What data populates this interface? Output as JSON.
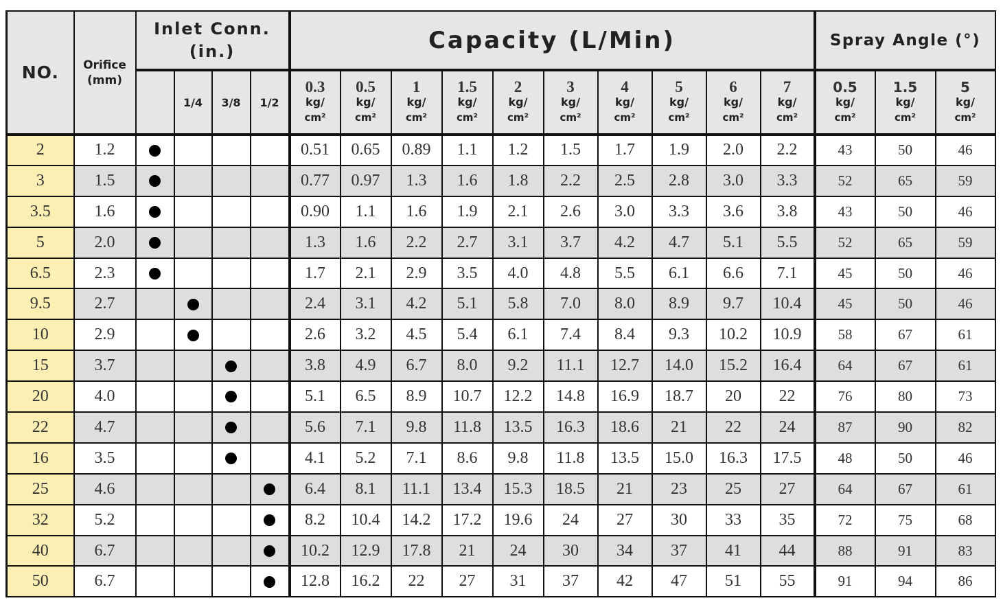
{
  "headers": {
    "no": "NO.",
    "orifice_line1": "Orifice",
    "orifice_line2": "(mm)",
    "inlet_line1": "Inlet Conn.",
    "inlet_line2": "(in.)",
    "capacity": "Capacity (L/Min)",
    "spray_angle": "Spray Angle (°)",
    "inlet_sizes": [
      "1/4",
      "3/8",
      "1/2"
    ],
    "unit_top": "kg/",
    "unit_bottom": "cm²",
    "capacity_pressures": [
      "0.3",
      "0.5",
      "1",
      "1.5",
      "2",
      "3",
      "4",
      "5",
      "6",
      "7"
    ],
    "spray_pressures": [
      "0.5",
      "1.5",
      "5"
    ]
  },
  "dot_symbol": "●",
  "rows": [
    {
      "no": "2",
      "orifice": "1.2",
      "inlet": 0,
      "capacity": [
        "0.51",
        "0.65",
        "0.89",
        "1.1",
        "1.2",
        "1.5",
        "1.7",
        "1.9",
        "2.0",
        "2.2"
      ],
      "spray": [
        "43",
        "50",
        "46"
      ]
    },
    {
      "no": "3",
      "orifice": "1.5",
      "inlet": 0,
      "capacity": [
        "0.77",
        "0.97",
        "1.3",
        "1.6",
        "1.8",
        "2.2",
        "2.5",
        "2.8",
        "3.0",
        "3.3"
      ],
      "spray": [
        "52",
        "65",
        "59"
      ]
    },
    {
      "no": "3.5",
      "orifice": "1.6",
      "inlet": 0,
      "capacity": [
        "0.90",
        "1.1",
        "1.6",
        "1.9",
        "2.1",
        "2.6",
        "3.0",
        "3.3",
        "3.6",
        "3.8"
      ],
      "spray": [
        "43",
        "50",
        "46"
      ]
    },
    {
      "no": "5",
      "orifice": "2.0",
      "inlet": 0,
      "capacity": [
        "1.3",
        "1.6",
        "2.2",
        "2.7",
        "3.1",
        "3.7",
        "4.2",
        "4.7",
        "5.1",
        "5.5"
      ],
      "spray": [
        "52",
        "65",
        "59"
      ]
    },
    {
      "no": "6.5",
      "orifice": "2.3",
      "inlet": 0,
      "capacity": [
        "1.7",
        "2.1",
        "2.9",
        "3.5",
        "4.0",
        "4.8",
        "5.5",
        "6.1",
        "6.6",
        "7.1"
      ],
      "spray": [
        "45",
        "50",
        "46"
      ]
    },
    {
      "no": "9.5",
      "orifice": "2.7",
      "inlet": 1,
      "capacity": [
        "2.4",
        "3.1",
        "4.2",
        "5.1",
        "5.8",
        "7.0",
        "8.0",
        "8.9",
        "9.7",
        "10.4"
      ],
      "spray": [
        "45",
        "50",
        "46"
      ]
    },
    {
      "no": "10",
      "orifice": "2.9",
      "inlet": 1,
      "capacity": [
        "2.6",
        "3.2",
        "4.5",
        "5.4",
        "6.1",
        "7.4",
        "8.4",
        "9.3",
        "10.2",
        "10.9"
      ],
      "spray": [
        "58",
        "67",
        "61"
      ]
    },
    {
      "no": "15",
      "orifice": "3.7",
      "inlet": 2,
      "capacity": [
        "3.8",
        "4.9",
        "6.7",
        "8.0",
        "9.2",
        "11.1",
        "12.7",
        "14.0",
        "15.2",
        "16.4"
      ],
      "spray": [
        "64",
        "67",
        "61"
      ]
    },
    {
      "no": "20",
      "orifice": "4.0",
      "inlet": 2,
      "capacity": [
        "5.1",
        "6.5",
        "8.9",
        "10.7",
        "12.2",
        "14.8",
        "16.9",
        "18.7",
        "20",
        "22"
      ],
      "spray": [
        "76",
        "80",
        "73"
      ]
    },
    {
      "no": "22",
      "orifice": "4.7",
      "inlet": 2,
      "capacity": [
        "5.6",
        "7.1",
        "9.8",
        "11.8",
        "13.5",
        "16.3",
        "18.6",
        "21",
        "22",
        "24"
      ],
      "spray": [
        "87",
        "90",
        "82"
      ]
    },
    {
      "no": "16",
      "orifice": "3.5",
      "inlet": 2,
      "capacity": [
        "4.1",
        "5.2",
        "7.1",
        "8.6",
        "9.8",
        "11.8",
        "13.5",
        "15.0",
        "16.3",
        "17.5"
      ],
      "spray": [
        "48",
        "50",
        "46"
      ]
    },
    {
      "no": "25",
      "orifice": "4.6",
      "inlet": 3,
      "capacity": [
        "6.4",
        "8.1",
        "11.1",
        "13.4",
        "15.3",
        "18.5",
        "21",
        "23",
        "25",
        "27"
      ],
      "spray": [
        "64",
        "67",
        "61"
      ]
    },
    {
      "no": "32",
      "orifice": "5.2",
      "inlet": 3,
      "capacity": [
        "8.2",
        "10.4",
        "14.2",
        "17.2",
        "19.6",
        "24",
        "27",
        "30",
        "33",
        "35"
      ],
      "spray": [
        "72",
        "75",
        "68"
      ]
    },
    {
      "no": "40",
      "orifice": "6.7",
      "inlet": 3,
      "capacity": [
        "10.2",
        "12.9",
        "17.8",
        "21",
        "24",
        "30",
        "34",
        "37",
        "41",
        "44"
      ],
      "spray": [
        "88",
        "91",
        "83"
      ]
    },
    {
      "no": "50",
      "orifice": "6.7",
      "inlet": 3,
      "capacity": [
        "12.8",
        "16.2",
        "22",
        "27",
        "31",
        "37",
        "42",
        "47",
        "51",
        "55"
      ],
      "spray": [
        "91",
        "94",
        "86"
      ]
    }
  ]
}
